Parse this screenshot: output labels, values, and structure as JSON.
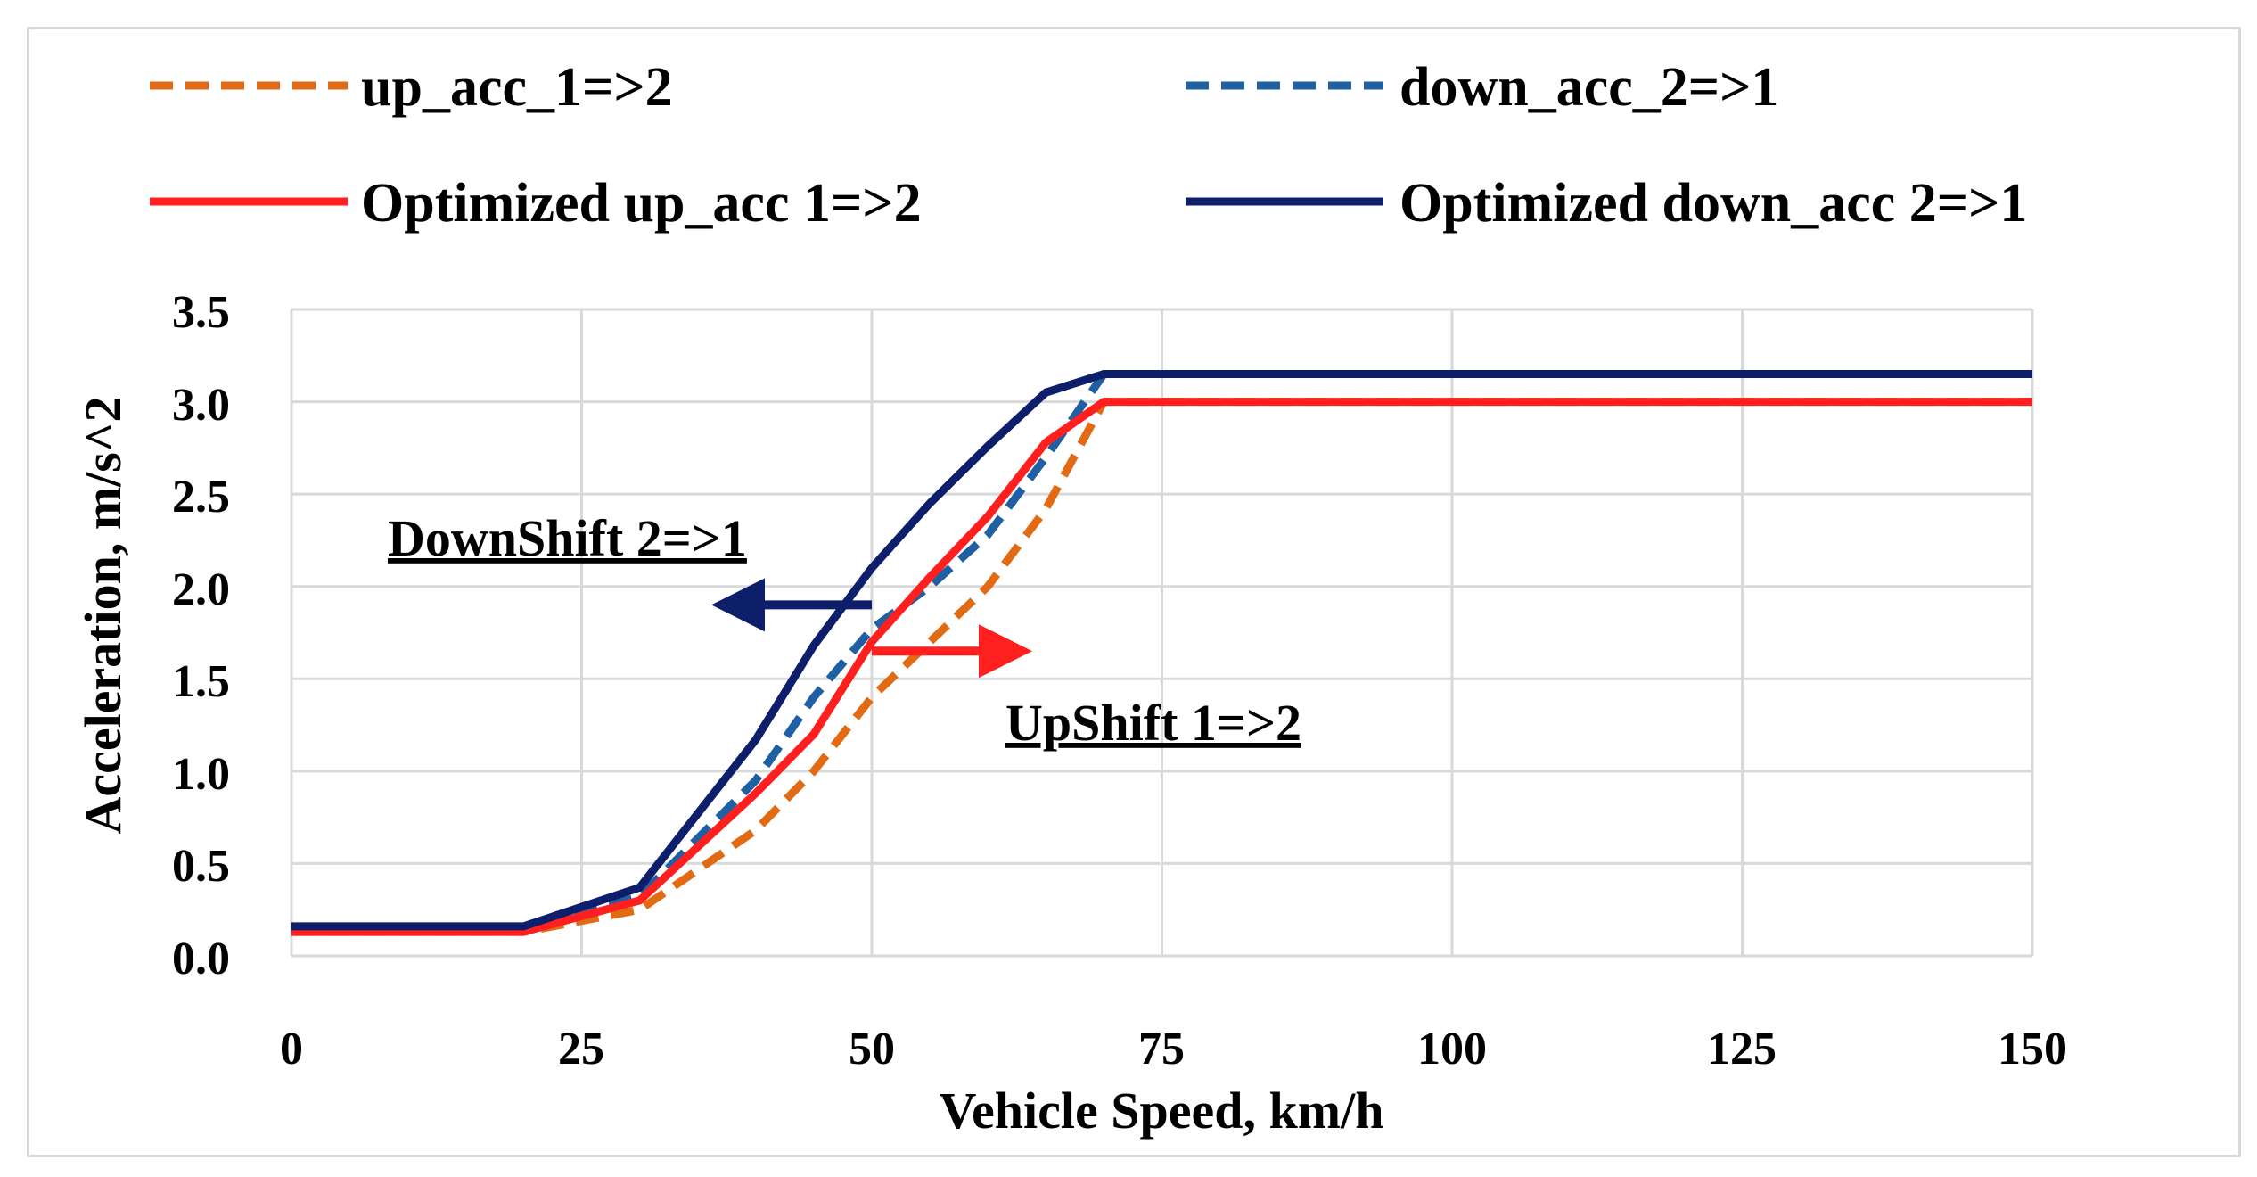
{
  "chart_data": {
    "type": "line",
    "title": "",
    "xlabel": "Vehicle Speed, km/h",
    "ylabel": "Acceleration, m/s^2",
    "xlim": [
      0,
      150
    ],
    "ylim": [
      0,
      3.5
    ],
    "xticks": [
      0,
      25,
      50,
      75,
      100,
      125,
      150
    ],
    "yticks": [
      "0.0",
      "0.5",
      "1.0",
      "1.5",
      "2.0",
      "2.5",
      "3.0",
      "3.5"
    ],
    "grid": true,
    "legend_position": "top",
    "series": [
      {
        "name": "up_acc_1=>2",
        "style": "dashed",
        "color": "#e26a12",
        "x": [
          0,
          20,
          30,
          40,
          45,
          50,
          60,
          65,
          70,
          150
        ],
        "y": [
          0.13,
          0.13,
          0.25,
          0.68,
          1.0,
          1.4,
          2.0,
          2.42,
          3.0,
          3.0
        ]
      },
      {
        "name": "down_acc_2=>1",
        "style": "dashed",
        "color": "#1f5fa3",
        "x": [
          0,
          20,
          30,
          40,
          45,
          50,
          55,
          60,
          65,
          70,
          150
        ],
        "y": [
          0.15,
          0.15,
          0.32,
          0.95,
          1.4,
          1.77,
          2.0,
          2.28,
          2.7,
          3.15,
          3.15
        ]
      },
      {
        "name": "Optimized up_acc 1=>2",
        "style": "solid",
        "color": "#ff1f1f",
        "x": [
          0,
          20,
          30,
          40,
          45,
          50,
          55,
          60,
          65,
          70,
          150
        ],
        "y": [
          0.13,
          0.13,
          0.3,
          0.88,
          1.2,
          1.7,
          2.05,
          2.38,
          2.78,
          3.0,
          3.0
        ]
      },
      {
        "name": "Optimized down_acc 2=>1",
        "style": "solid",
        "color": "#0d1f6b",
        "x": [
          0,
          20,
          30,
          40,
          45,
          50,
          55,
          60,
          65,
          70,
          150
        ],
        "y": [
          0.16,
          0.16,
          0.37,
          1.17,
          1.68,
          2.1,
          2.45,
          2.76,
          3.05,
          3.15,
          3.15
        ]
      }
    ],
    "annotations": [
      {
        "text": "DownShift 2=>1",
        "color": "#0d1f6b",
        "arrow": "left",
        "at_x": 50,
        "at_y": 1.9
      },
      {
        "text": "UpShift 1=>2",
        "color": "#ff1f1f",
        "arrow": "right",
        "at_x": 50,
        "at_y": 1.65
      }
    ]
  }
}
